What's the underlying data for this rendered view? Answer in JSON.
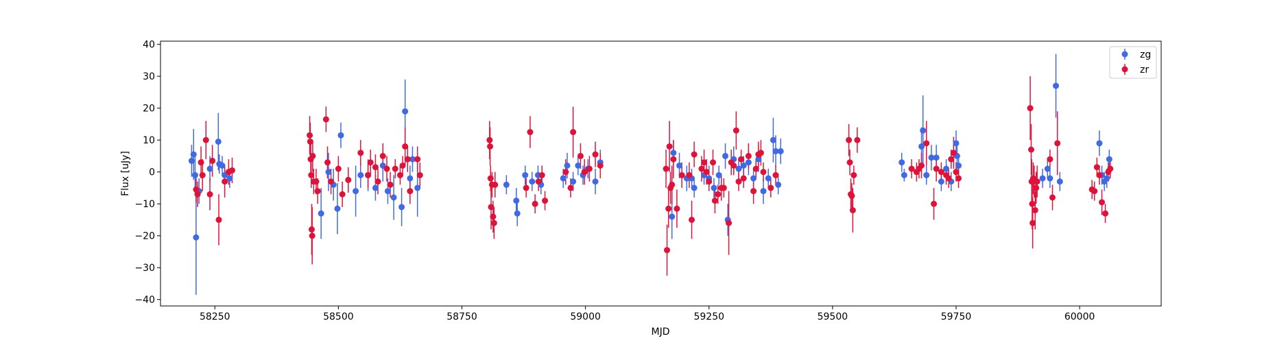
{
  "chart_data": {
    "type": "scatter",
    "xlabel": "MJD",
    "ylabel": "Flux [uJy]",
    "xlim": [
      58140,
      60165
    ],
    "ylim": [
      -42,
      41
    ],
    "xticks": [
      58250,
      58500,
      58750,
      59000,
      59250,
      59500,
      59750,
      60000
    ],
    "yticks": [
      -40,
      -30,
      -20,
      -10,
      0,
      10,
      20,
      30,
      40
    ],
    "grid": false,
    "legend_position": "top-right",
    "series": [
      {
        "name": "zg",
        "color": "#4169e1",
        "points": [
          [
            58203,
            3.5,
            5
          ],
          [
            58207,
            5.5,
            8
          ],
          [
            58210,
            -1,
            6
          ],
          [
            58212,
            -20.5,
            18
          ],
          [
            58218,
            -6,
            4
          ],
          [
            58240,
            1,
            4
          ],
          [
            58257,
            9.5,
            9
          ],
          [
            58259,
            2.5,
            3
          ],
          [
            58265,
            2,
            3
          ],
          [
            58270,
            -1,
            3
          ],
          [
            58280,
            -2,
            3
          ],
          [
            58465,
            -13,
            8
          ],
          [
            58480,
            0,
            6
          ],
          [
            58490,
            -4,
            5
          ],
          [
            58498,
            -11.5,
            8
          ],
          [
            58505,
            11.5,
            4
          ],
          [
            58535,
            -6,
            8
          ],
          [
            58545,
            -1,
            4
          ],
          [
            58560,
            -1,
            5
          ],
          [
            58575,
            -5,
            4
          ],
          [
            58590,
            2,
            5
          ],
          [
            58600,
            -6,
            4
          ],
          [
            58612,
            -8,
            7
          ],
          [
            58628,
            -11,
            6
          ],
          [
            58635,
            19,
            10
          ],
          [
            58645,
            -2,
            4
          ],
          [
            58650,
            4,
            4
          ],
          [
            58660,
            -5,
            9
          ],
          [
            58840,
            -4,
            3
          ],
          [
            58860,
            -9,
            4
          ],
          [
            58862,
            -13,
            4
          ],
          [
            58878,
            -1,
            3
          ],
          [
            58892,
            -3,
            3
          ],
          [
            58904,
            -1,
            3
          ],
          [
            58910,
            -4,
            3
          ],
          [
            58955,
            -2,
            3
          ],
          [
            58963,
            2,
            4
          ],
          [
            58975,
            -3,
            3
          ],
          [
            58985,
            2,
            3
          ],
          [
            58995,
            -1,
            3
          ],
          [
            59005,
            1,
            3
          ],
          [
            59020,
            -3,
            4
          ],
          [
            59030,
            3,
            4
          ],
          [
            59175,
            -14,
            7
          ],
          [
            59178,
            6,
            4
          ],
          [
            59190,
            2,
            4
          ],
          [
            59205,
            -2,
            4
          ],
          [
            59215,
            -2,
            3
          ],
          [
            59220,
            -5,
            3
          ],
          [
            59240,
            -1,
            3
          ],
          [
            59250,
            -2,
            4
          ],
          [
            59260,
            -5,
            3
          ],
          [
            59270,
            -1,
            3
          ],
          [
            59283,
            5,
            4
          ],
          [
            59288,
            -15,
            5
          ],
          [
            59300,
            4,
            4
          ],
          [
            59310,
            1,
            3
          ],
          [
            59320,
            2,
            3
          ],
          [
            59330,
            3,
            4
          ],
          [
            59340,
            -2,
            3
          ],
          [
            59350,
            4,
            4
          ],
          [
            59360,
            -6,
            4
          ],
          [
            59370,
            -2,
            3
          ],
          [
            59380,
            10,
            7
          ],
          [
            59385,
            6.5,
            5
          ],
          [
            59390,
            -4,
            3
          ],
          [
            59395,
            6.5,
            4
          ],
          [
            59640,
            3,
            3
          ],
          [
            59645,
            -1,
            2
          ],
          [
            59680,
            8,
            6
          ],
          [
            59683,
            13,
            11
          ],
          [
            59690,
            -1,
            3
          ],
          [
            59700,
            4.5,
            4
          ],
          [
            59710,
            4.5,
            4
          ],
          [
            59720,
            -3,
            3
          ],
          [
            59730,
            1,
            3
          ],
          [
            59740,
            -3,
            3
          ],
          [
            59745,
            6,
            4
          ],
          [
            59750,
            9,
            4
          ],
          [
            59752,
            5,
            4
          ],
          [
            59755,
            2,
            3
          ],
          [
            59925,
            -2,
            3
          ],
          [
            59935,
            1,
            3
          ],
          [
            59940,
            -2,
            3
          ],
          [
            59952,
            27,
            10
          ],
          [
            59960,
            -3,
            3
          ],
          [
            60040,
            9,
            4
          ],
          [
            60045,
            -1,
            3
          ],
          [
            60050,
            -3,
            3
          ],
          [
            60055,
            -2,
            3
          ],
          [
            60060,
            4,
            3
          ]
        ]
      },
      {
        "name": "zr",
        "color": "#dc143c",
        "points": [
          [
            58212,
            -5.5,
            4
          ],
          [
            58215,
            -7,
            4
          ],
          [
            58222,
            3,
            5
          ],
          [
            58225,
            -1,
            5
          ],
          [
            58232,
            10,
            6
          ],
          [
            58240,
            -7,
            5
          ],
          [
            58245,
            3.5,
            5
          ],
          [
            58258,
            -15,
            8
          ],
          [
            58270,
            -3,
            5
          ],
          [
            58278,
            0,
            4
          ],
          [
            58285,
            0.5,
            4
          ],
          [
            58442,
            11.5,
            6
          ],
          [
            58443,
            9.5,
            6
          ],
          [
            58444,
            4,
            5
          ],
          [
            58445,
            -1,
            4
          ],
          [
            58446,
            -18,
            8
          ],
          [
            58447,
            -20,
            9
          ],
          [
            58448,
            5,
            5
          ],
          [
            58450,
            -3,
            4
          ],
          [
            58455,
            -3,
            4
          ],
          [
            58458,
            -6,
            4
          ],
          [
            58475,
            16.5,
            4
          ],
          [
            58478,
            3,
            5
          ],
          [
            58485,
            -3,
            4
          ],
          [
            58500,
            1,
            4
          ],
          [
            58508,
            -7,
            4
          ],
          [
            58520,
            -2.5,
            4
          ],
          [
            58545,
            6,
            4
          ],
          [
            58560,
            -1,
            4
          ],
          [
            58565,
            3,
            4
          ],
          [
            58575,
            1.5,
            4
          ],
          [
            58580,
            -3,
            4
          ],
          [
            58590,
            5,
            4
          ],
          [
            58598,
            1,
            4
          ],
          [
            58605,
            -4,
            4
          ],
          [
            58615,
            1,
            3
          ],
          [
            58625,
            -1,
            3
          ],
          [
            58630,
            2,
            3
          ],
          [
            58635,
            8,
            6
          ],
          [
            58640,
            4,
            4
          ],
          [
            58645,
            -6,
            4
          ],
          [
            58660,
            4,
            4
          ],
          [
            58665,
            -1,
            4
          ],
          [
            58806,
            10,
            6
          ],
          [
            58807,
            8,
            6
          ],
          [
            58808,
            -2,
            4
          ],
          [
            58809,
            -11,
            7
          ],
          [
            58811,
            -4,
            4
          ],
          [
            58813,
            -14,
            5
          ],
          [
            58815,
            -16,
            5
          ],
          [
            58817,
            -4,
            4
          ],
          [
            58880,
            -5,
            3
          ],
          [
            58888,
            12.5,
            5
          ],
          [
            58898,
            -10,
            3
          ],
          [
            58905,
            -3,
            3
          ],
          [
            58912,
            -1,
            3
          ],
          [
            58918,
            -9,
            3
          ],
          [
            58960,
            0,
            4
          ],
          [
            58970,
            -5,
            3
          ],
          [
            58975,
            12.5,
            8
          ],
          [
            58990,
            5,
            4
          ],
          [
            58998,
            0,
            4
          ],
          [
            59008,
            1,
            4
          ],
          [
            59020,
            5.5,
            4
          ],
          [
            59030,
            2,
            4
          ],
          [
            59163,
            1,
            6
          ],
          [
            59165,
            -24.5,
            8
          ],
          [
            59168,
            -11.5,
            6
          ],
          [
            59170,
            8,
            8
          ],
          [
            59172,
            -5,
            5
          ],
          [
            59175,
            -4,
            6
          ],
          [
            59178,
            4,
            6
          ],
          [
            59185,
            -11.5,
            6
          ],
          [
            59195,
            -1,
            4
          ],
          [
            59210,
            -1,
            4
          ],
          [
            59215,
            -15,
            6
          ],
          [
            59220,
            5.5,
            4
          ],
          [
            59235,
            1,
            4
          ],
          [
            59240,
            3,
            4
          ],
          [
            59245,
            0,
            4
          ],
          [
            59250,
            -3,
            3
          ],
          [
            59258,
            3,
            4
          ],
          [
            59262,
            -9,
            4
          ],
          [
            59268,
            -7,
            3
          ],
          [
            59275,
            -5,
            4
          ],
          [
            59280,
            -5,
            3
          ],
          [
            59290,
            -16,
            10
          ],
          [
            59295,
            3,
            4
          ],
          [
            59300,
            2,
            3
          ],
          [
            59305,
            13,
            6
          ],
          [
            59310,
            -3,
            3
          ],
          [
            59315,
            4,
            3
          ],
          [
            59320,
            -2,
            3
          ],
          [
            59330,
            5,
            4
          ],
          [
            59340,
            -6,
            4
          ],
          [
            59345,
            1,
            3
          ],
          [
            59350,
            5.5,
            4
          ],
          [
            59355,
            6,
            4
          ],
          [
            59360,
            0,
            3
          ],
          [
            59375,
            -5,
            3
          ],
          [
            59385,
            -1,
            3
          ],
          [
            59533,
            10,
            5
          ],
          [
            59535,
            3,
            4
          ],
          [
            59537,
            -7,
            5
          ],
          [
            59539,
            -7.5,
            4
          ],
          [
            59541,
            -12,
            7
          ],
          [
            59543,
            -1,
            3
          ],
          [
            59550,
            10,
            4
          ],
          [
            59660,
            1,
            3
          ],
          [
            59670,
            0,
            3
          ],
          [
            59675,
            1,
            3
          ],
          [
            59680,
            2,
            4
          ],
          [
            59690,
            9,
            7
          ],
          [
            59705,
            -10,
            5
          ],
          [
            59710,
            1,
            4
          ],
          [
            59720,
            0,
            3
          ],
          [
            59730,
            -1,
            3
          ],
          [
            59735,
            -2,
            3
          ],
          [
            59740,
            4,
            3
          ],
          [
            59745,
            6,
            5
          ],
          [
            59750,
            0,
            3
          ],
          [
            59755,
            -2,
            3
          ],
          [
            59900,
            20,
            10
          ],
          [
            59902,
            7,
            8
          ],
          [
            59903,
            -3,
            7
          ],
          [
            59904,
            -10,
            8
          ],
          [
            59905,
            -16,
            8
          ],
          [
            59906,
            -2,
            5
          ],
          [
            59908,
            -3,
            5
          ],
          [
            59910,
            -12,
            6
          ],
          [
            59912,
            -5,
            5
          ],
          [
            59914,
            -3,
            5
          ],
          [
            59940,
            4,
            3
          ],
          [
            59945,
            -8,
            4
          ],
          [
            59955,
            9,
            10
          ],
          [
            60025,
            -5.5,
            3
          ],
          [
            60030,
            -6,
            3
          ],
          [
            60035,
            1.5,
            3
          ],
          [
            60040,
            -1,
            3
          ],
          [
            60045,
            -9.5,
            4
          ],
          [
            60052,
            -13,
            3
          ],
          [
            60058,
            0,
            3
          ],
          [
            60062,
            1,
            3
          ]
        ]
      }
    ]
  }
}
